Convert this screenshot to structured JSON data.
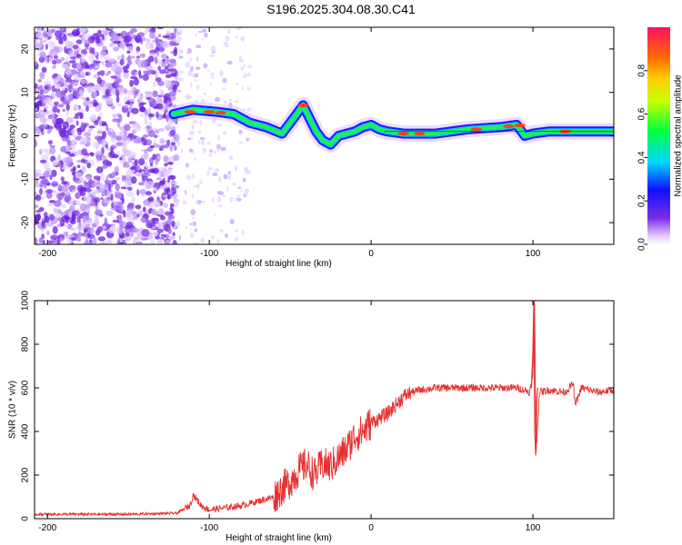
{
  "title": "S196.2025.304.08.30.C41",
  "colors": {
    "signal": "#e63030",
    "scatter": "#7a2ee6",
    "frame": "#000000"
  },
  "chart_data": [
    {
      "type": "heatmap",
      "xlabel": "Height of straight line (km)",
      "ylabel": "Frequency (Hz)",
      "xlim": [
        -208,
        150
      ],
      "ylim": [
        -25,
        25
      ],
      "xticks": [
        -200,
        -100,
        0,
        100
      ],
      "yticks": [
        -20,
        -10,
        0,
        10,
        20
      ],
      "colorbar": {
        "label": "Normalized spectral amplitude",
        "range": [
          0,
          1
        ],
        "ticks": [
          "0.0",
          "0.2",
          "0.4",
          "0.6",
          "0.8"
        ]
      },
      "ridge": {
        "x": [
          -122,
          -110,
          -95,
          -85,
          -75,
          -65,
          -55,
          -48,
          -42,
          -38,
          -34,
          -30,
          -25,
          -20,
          -15,
          -10,
          -5,
          0,
          5,
          10,
          20,
          40,
          60,
          80,
          90,
          95,
          100,
          110,
          125,
          150
        ],
        "y": [
          5,
          6,
          5.5,
          5,
          3,
          2,
          0.5,
          4,
          7,
          4,
          1,
          -1,
          -2,
          0,
          0.5,
          1,
          2,
          2.5,
          1.5,
          1,
          0.5,
          0.5,
          1.5,
          2,
          2.5,
          0,
          0.5,
          1,
          1,
          1
        ]
      }
    },
    {
      "type": "line",
      "xlabel": "Height of straight line (km)",
      "ylabel": "SNR (10 * v/v)",
      "xlim": [
        -208,
        150
      ],
      "ylim": [
        0,
        1000
      ],
      "xticks": [
        -200,
        -100,
        0,
        100
      ],
      "yticks": [
        0,
        200,
        400,
        600,
        800,
        1000
      ],
      "series": [
        {
          "name": "SNR",
          "x": [
            -208,
            -150,
            -120,
            -112,
            -110,
            -105,
            -100,
            -90,
            -80,
            -70,
            -60,
            -55,
            -50,
            -45,
            -40,
            -35,
            -30,
            -25,
            -20,
            -15,
            -10,
            -5,
            0,
            5,
            10,
            15,
            20,
            25,
            30,
            40,
            50,
            60,
            70,
            80,
            90,
            95,
            98,
            100,
            101,
            102,
            104,
            110,
            120,
            125,
            126,
            130,
            140,
            150
          ],
          "y": [
            20,
            20,
            25,
            60,
            110,
            60,
            40,
            50,
            60,
            80,
            100,
            140,
            170,
            220,
            250,
            200,
            250,
            240,
            280,
            320,
            380,
            400,
            440,
            460,
            480,
            520,
            560,
            580,
            590,
            600,
            600,
            600,
            600,
            600,
            600,
            590,
            580,
            650,
            1000,
            300,
            580,
            590,
            580,
            620,
            520,
            600,
            580,
            590
          ]
        }
      ]
    }
  ]
}
